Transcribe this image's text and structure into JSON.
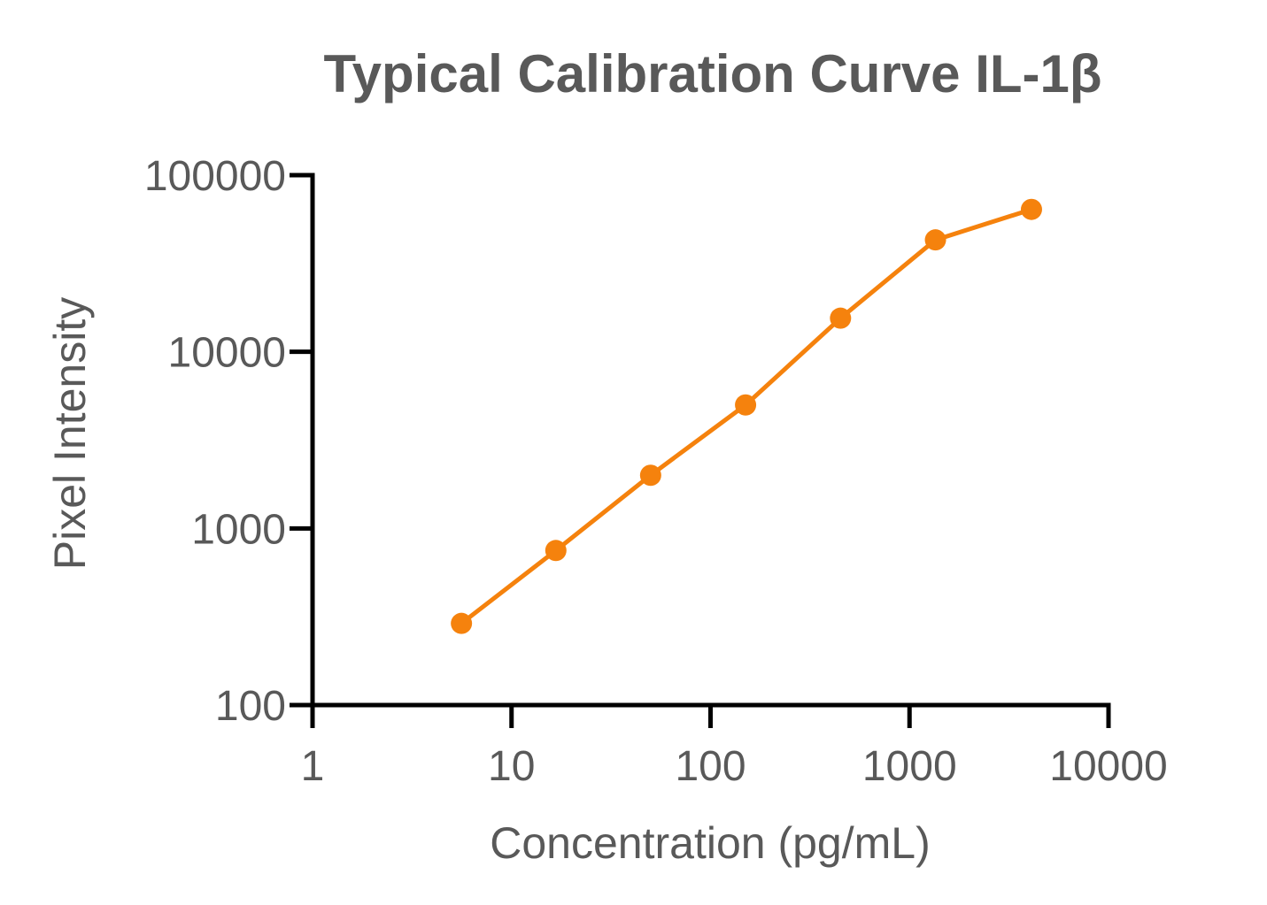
{
  "chart_data": {
    "type": "line",
    "title": "Typical Calibration Curve IL-1β",
    "xlabel": "Concentration (pg/mL)",
    "ylabel": "Pixel Intensity",
    "xscale": "log",
    "yscale": "log",
    "xlim": [
      1,
      10000
    ],
    "ylim": [
      100,
      100000
    ],
    "xticks": [
      "1",
      "10",
      "100",
      "1000",
      "10000"
    ],
    "yticks": [
      "100",
      "1000",
      "10000",
      "100000"
    ],
    "grid": false,
    "legend": "none",
    "series": [
      {
        "color": "#F5820D",
        "markers": "filled-circle",
        "x": [
          5.6,
          16.7,
          50,
          150,
          450,
          1350,
          4100
        ],
        "y": [
          290,
          750,
          2000,
          5000,
          15500,
          43000,
          64000
        ]
      }
    ]
  }
}
